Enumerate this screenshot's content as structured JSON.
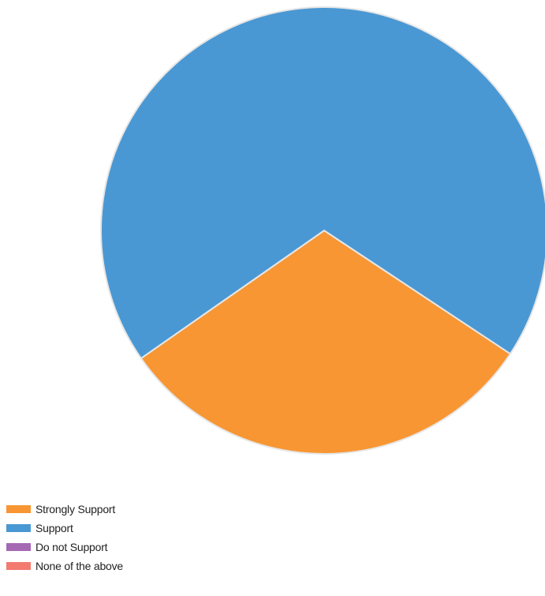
{
  "chart_data": {
    "type": "pie",
    "title": "",
    "categories": [
      "Strongly Support",
      "Support",
      "Do not Support",
      "None of the above"
    ],
    "values": [
      31,
      69,
      0,
      0
    ],
    "colors": [
      "#f79633",
      "#4a98d3",
      "#a569b4",
      "#f27a6f"
    ],
    "slice_border_color": "#e6e6e6",
    "legend_position": "bottom-left"
  },
  "legend": {
    "items": [
      {
        "label": "Strongly Support",
        "color": "#f79633"
      },
      {
        "label": "Support",
        "color": "#4a98d3"
      },
      {
        "label": "Do not Support",
        "color": "#a569b4"
      },
      {
        "label": "None of the above",
        "color": "#f27a6f"
      }
    ]
  }
}
